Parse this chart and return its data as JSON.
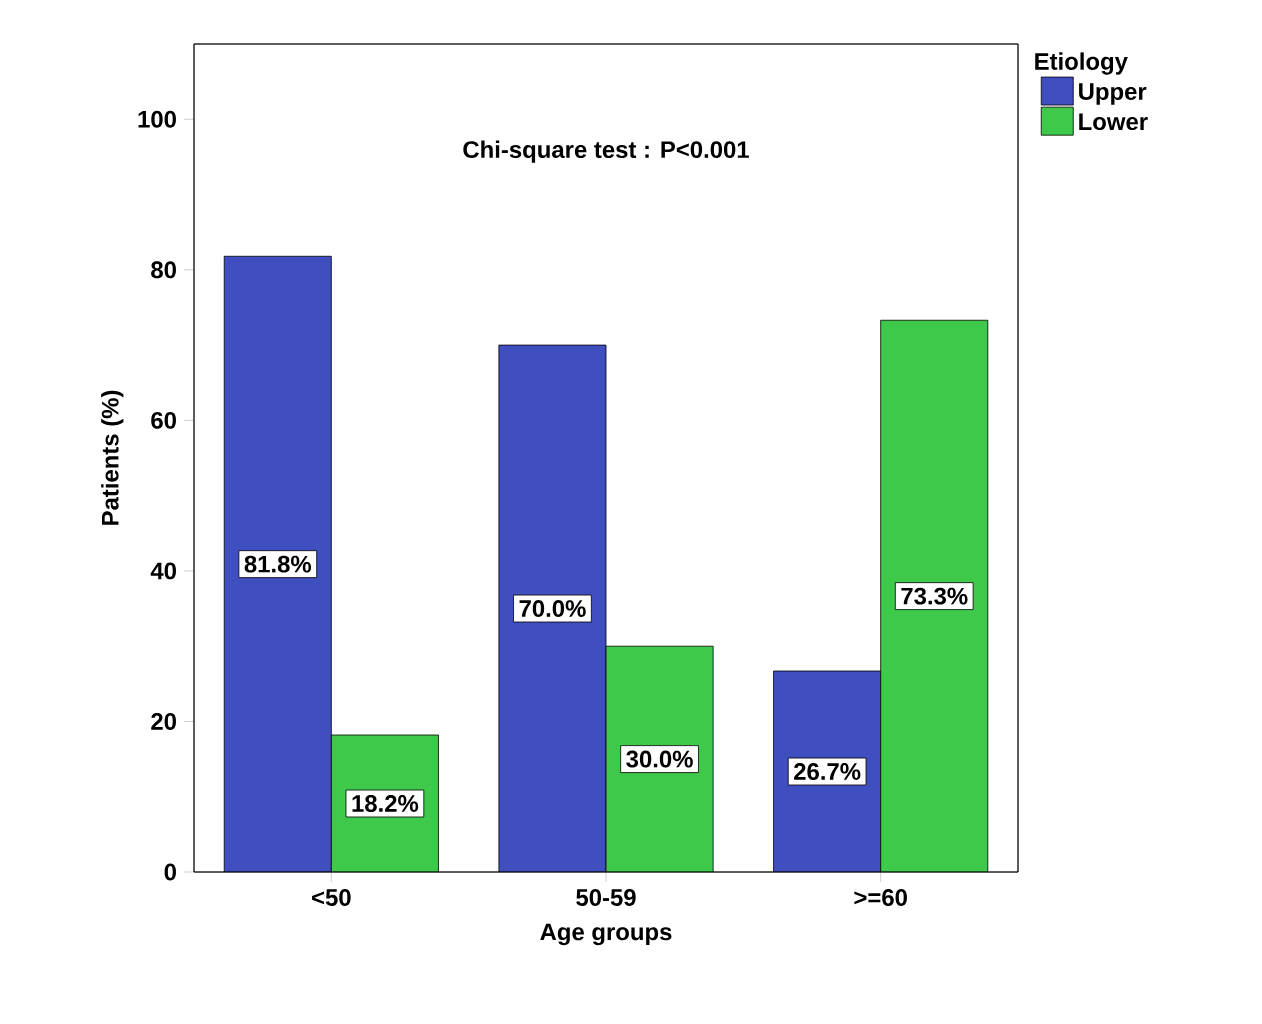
{
  "chart_data": {
    "type": "bar",
    "xlabel": "Age groups",
    "ylabel": "Patients (%)",
    "legend_title": "Etiology",
    "annotations": [
      "Chi-square test : P<0.001"
    ],
    "categories": [
      "<50",
      "50-59",
      ">=60"
    ],
    "series": [
      {
        "name": "Upper",
        "color": "#3f4fbf",
        "values": [
          81.8,
          70.0,
          26.7
        ],
        "value_labels": [
          "81.8%",
          "70.0%",
          "26.7%"
        ]
      },
      {
        "name": "Lower",
        "color": "#3ec94b",
        "values": [
          18.2,
          30.0,
          73.3
        ],
        "value_labels": [
          "18.2%",
          "30.0%",
          "73.3%"
        ]
      }
    ],
    "ylim": [
      0,
      110
    ],
    "yticks": [
      0,
      20,
      40,
      60,
      80,
      100
    ],
    "grid": false,
    "legend": "top right"
  }
}
